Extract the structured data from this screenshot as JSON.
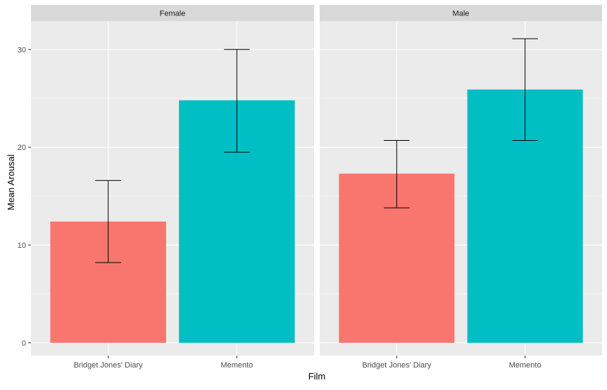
{
  "chart_data": {
    "type": "bar",
    "xlabel": "Film",
    "ylabel": "Mean Arousal",
    "ylim": [
      -1.3,
      32.9
    ],
    "yticks": [
      0,
      10,
      20,
      30
    ],
    "categories": [
      "Bridget Jones' Diary",
      "Memento"
    ],
    "colors": [
      "#F8766D",
      "#00BFC4"
    ],
    "panel_background": "#EBEBEB",
    "strip_background": "#D9D9D9",
    "grid": true,
    "legend": "none",
    "facets": [
      {
        "label": "Female",
        "values": [
          12.4,
          24.8
        ],
        "error_low": [
          8.2,
          19.5
        ],
        "error_high": [
          16.6,
          30.0
        ]
      },
      {
        "label": "Male",
        "values": [
          17.3,
          25.9
        ],
        "error_low": [
          13.8,
          20.7
        ],
        "error_high": [
          20.7,
          31.1
        ]
      }
    ]
  }
}
